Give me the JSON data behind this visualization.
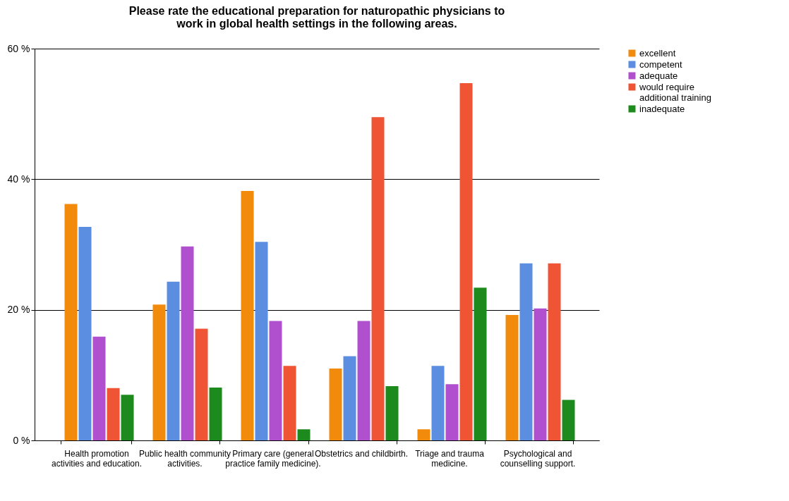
{
  "chart_data": {
    "type": "bar",
    "title": "Please rate the educational preparation for naturopathic physicians to work in global health settings in the following areas.",
    "categories": [
      "Health promotion activities and education.",
      "Public health community activities.",
      "Primary care (general practice family medicine).",
      "Obstetrics and childbirth.",
      "Triage and trauma medicine.",
      "Psychological and counselling support."
    ],
    "series": [
      {
        "name": "excellent",
        "color": "#f28a0c",
        "values": [
          36.2,
          20.8,
          38.2,
          11.0,
          1.7,
          19.2
        ]
      },
      {
        "name": "competent",
        "color": "#5b8ee0",
        "values": [
          32.7,
          24.3,
          30.4,
          12.9,
          11.4,
          27.1
        ]
      },
      {
        "name": "adequate",
        "color": "#b050cf",
        "values": [
          15.9,
          29.7,
          18.3,
          18.3,
          8.6,
          20.2
        ]
      },
      {
        "name": "would require additional training",
        "color": "#ef5535",
        "values": [
          8.0,
          17.1,
          11.4,
          49.5,
          54.7,
          27.1
        ]
      },
      {
        "name": "inadequate",
        "color": "#1c8a1c",
        "values": [
          7.0,
          8.1,
          1.7,
          8.3,
          23.4,
          6.2
        ]
      }
    ],
    "ylim": [
      0,
      60
    ],
    "yticks": [
      {
        "value": 0,
        "label": "0 %"
      },
      {
        "value": 20,
        "label": "20 %"
      },
      {
        "value": 40,
        "label": "40 %"
      },
      {
        "value": 60,
        "label": "60 %"
      }
    ],
    "grid": "y",
    "legend": "right"
  }
}
